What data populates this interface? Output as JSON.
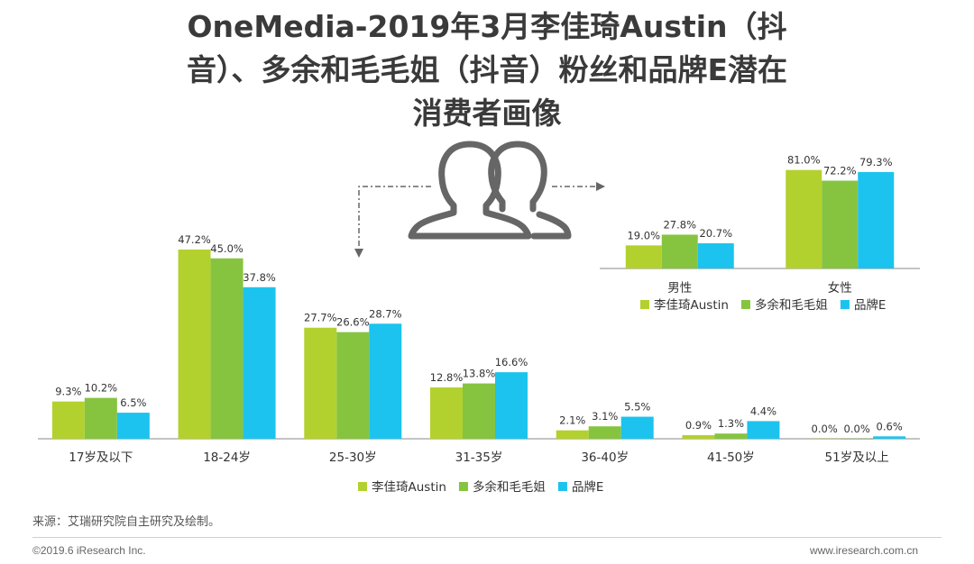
{
  "title": {
    "line1": "OneMedia-2019年3月李佳琦Austin（抖",
    "line2": "音）、多余和毛毛姐（抖音）粉丝和品牌E潜在",
    "line3": "消费者画像"
  },
  "icon": "two-people-icon",
  "colors": {
    "series1": "#b3d12e",
    "series2": "#86c440",
    "series3": "#1cc3ee",
    "axis": "#888888",
    "arrow": "#666666",
    "icon": "#666666"
  },
  "chart_data": [
    {
      "type": "bar",
      "categories": [
        "17岁及以下",
        "18-24岁",
        "25-30岁",
        "31-35岁",
        "36-40岁",
        "41-50岁",
        "51岁及以上"
      ],
      "series": [
        {
          "name": "李佳琦Austin",
          "values": [
            9.3,
            47.2,
            27.7,
            12.8,
            2.1,
            0.9,
            0.0
          ]
        },
        {
          "name": "多余和毛毛姐",
          "values": [
            10.2,
            45.0,
            26.6,
            13.8,
            3.1,
            1.3,
            0.0
          ]
        },
        {
          "name": "品牌E",
          "values": [
            6.5,
            37.8,
            28.7,
            16.6,
            5.5,
            4.4,
            0.6
          ]
        }
      ],
      "value_suffix": "%",
      "legend_position": "bottom"
    },
    {
      "type": "bar",
      "categories": [
        "男性",
        "女性"
      ],
      "series": [
        {
          "name": "李佳琦Austin",
          "values": [
            19.0,
            81.0
          ]
        },
        {
          "name": "多余和毛毛姐",
          "values": [
            27.8,
            72.2
          ]
        },
        {
          "name": "品牌E",
          "values": [
            20.7,
            79.3
          ]
        }
      ],
      "value_suffix": "%",
      "legend_position": "bottom"
    }
  ],
  "source": "来源：艾瑞研究院自主研究及绘制。",
  "copyright": "©2019.6 iResearch Inc.",
  "website": "www.iresearch.com.cn"
}
